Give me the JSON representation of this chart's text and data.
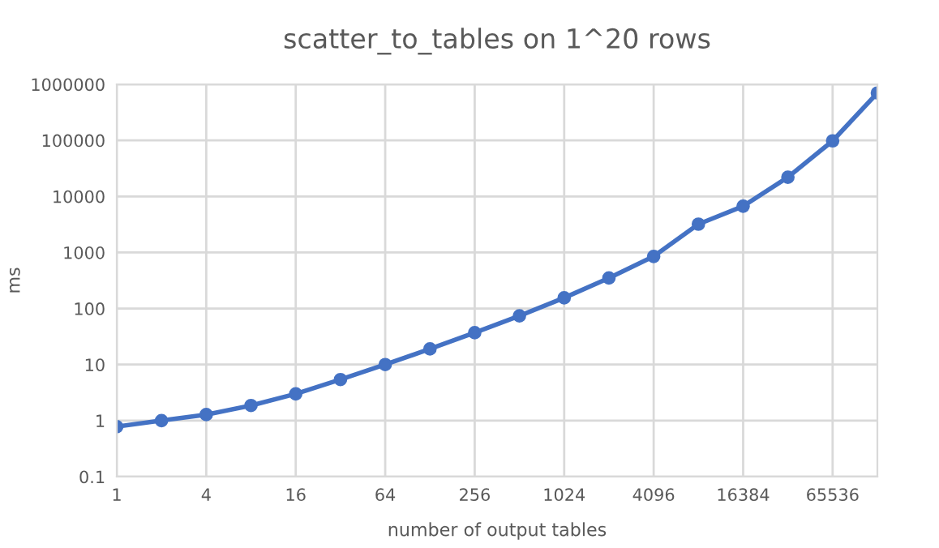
{
  "chart_data": {
    "type": "line",
    "title": "scatter_to_tables on 1^20 rows",
    "xlabel": "number of output tables",
    "ylabel": "ms",
    "x": [
      1,
      2,
      4,
      8,
      16,
      32,
      64,
      128,
      256,
      512,
      1024,
      2048,
      4096,
      8192,
      16384,
      32768,
      65536,
      131072
    ],
    "series": [
      {
        "color": "#4472c4",
        "values": [
          0.78,
          1.0,
          1.28,
          1.86,
          3.0,
          5.4,
          10,
          19,
          37,
          74,
          155,
          350,
          850,
          3200,
          6700,
          22000,
          98000,
          700000
        ]
      }
    ],
    "log": "xy",
    "xlim": [
      1,
      131072
    ],
    "xticks": [
      1,
      4,
      16,
      64,
      256,
      1024,
      4096,
      16384,
      65536
    ],
    "ylim": [
      0.1,
      1000000
    ],
    "yticks": [
      0.1,
      1,
      10,
      100,
      1000,
      10000,
      100000,
      1000000
    ],
    "grid": true,
    "marker": "circle",
    "line_style": "solid"
  }
}
